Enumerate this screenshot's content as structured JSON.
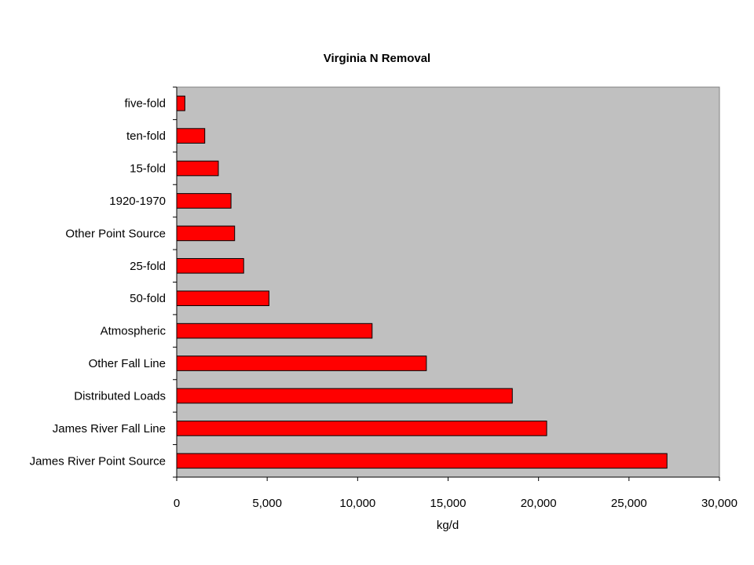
{
  "chart_data": {
    "type": "bar",
    "orientation": "horizontal",
    "title": "Virginia N Removal",
    "xlabel": "kg/d",
    "ylabel": "",
    "xlim": [
      0,
      30000
    ],
    "x_ticks": [
      0,
      5000,
      10000,
      15000,
      20000,
      25000,
      30000
    ],
    "x_tick_labels": [
      "0",
      "5,000",
      "10,000",
      "15,000",
      "20,000",
      "25,000",
      "30,000"
    ],
    "grid": false,
    "legend": "none",
    "colors": {
      "bar_fill": "#ff0000",
      "bar_stroke": "#000000",
      "plot_bg": "#c0c0c0"
    },
    "categories": [
      "five-fold",
      "ten-fold",
      "15-fold",
      "1920-1970",
      "Other Point Source",
      "25-fold",
      "50-fold",
      "Atmospheric",
      "Other Fall Line",
      "Distributed Loads",
      "James River Fall Line",
      "James River Point Source"
    ],
    "values": [
      450,
      1550,
      2300,
      3000,
      3200,
      3700,
      5100,
      10800,
      13800,
      18550,
      20450,
      27100
    ]
  }
}
